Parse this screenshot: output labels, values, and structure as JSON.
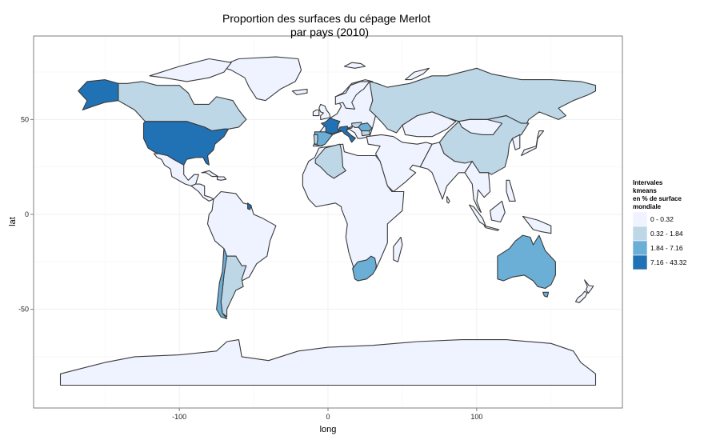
{
  "title_line1": "Proportion des surfaces du cépage Merlot",
  "title_line2": "par pays (2010)",
  "chart_data": {
    "type": "choropleth",
    "title": "Proportion des surfaces du cépage Merlot par pays (2010)",
    "xlabel": "long",
    "ylabel": "lat",
    "x_ticks": [
      -100,
      0,
      100
    ],
    "y_ticks": [
      50,
      0,
      -50
    ],
    "xlim": [
      -198,
      198
    ],
    "ylim": [
      -102,
      94
    ],
    "grid": true,
    "legend": {
      "title_lines": [
        "Intervales",
        " kmeans",
        " en % de surface",
        " mondiale"
      ],
      "position": "right",
      "classes": [
        {
          "label": "0 - 0.32",
          "color": "#eff3ff"
        },
        {
          "label": "0.32 - 1.84",
          "color": "#bdd7e7"
        },
        {
          "label": "1.84 - 7.16",
          "color": "#6baed6"
        },
        {
          "label": "7.16 - 43.32",
          "color": "#2171b5"
        }
      ]
    },
    "highlighted_regions": [
      {
        "region": "Alaska",
        "class": "7.16 - 43.32"
      },
      {
        "region": "United States",
        "class": "7.16 - 43.32"
      },
      {
        "region": "France",
        "class": "7.16 - 43.32"
      },
      {
        "region": "Italy",
        "class": "7.16 - 43.32"
      },
      {
        "region": "French Guiana",
        "class": "7.16 - 43.32"
      },
      {
        "region": "Australia",
        "class": "1.84 - 7.16"
      },
      {
        "region": "South Africa",
        "class": "1.84 - 7.16"
      },
      {
        "region": "Chile",
        "class": "1.84 - 7.16"
      },
      {
        "region": "Spain",
        "class": "1.84 - 7.16"
      },
      {
        "region": "Romania",
        "class": "1.84 - 7.16"
      },
      {
        "region": "Canada",
        "class": "0.32 - 1.84"
      },
      {
        "region": "Russia",
        "class": "0.32 - 1.84"
      },
      {
        "region": "China",
        "class": "0.32 - 1.84"
      },
      {
        "region": "Argentina",
        "class": "0.32 - 1.84"
      },
      {
        "region": "Algeria",
        "class": "0.32 - 1.84"
      },
      {
        "region": "Portugal",
        "class": "0.32 - 1.84"
      },
      {
        "region": "Bulgaria",
        "class": "0.32 - 1.84"
      },
      {
        "region": "Hungary",
        "class": "0.32 - 1.84"
      },
      {
        "region": "Slovenia",
        "class": "0.32 - 1.84"
      }
    ]
  }
}
